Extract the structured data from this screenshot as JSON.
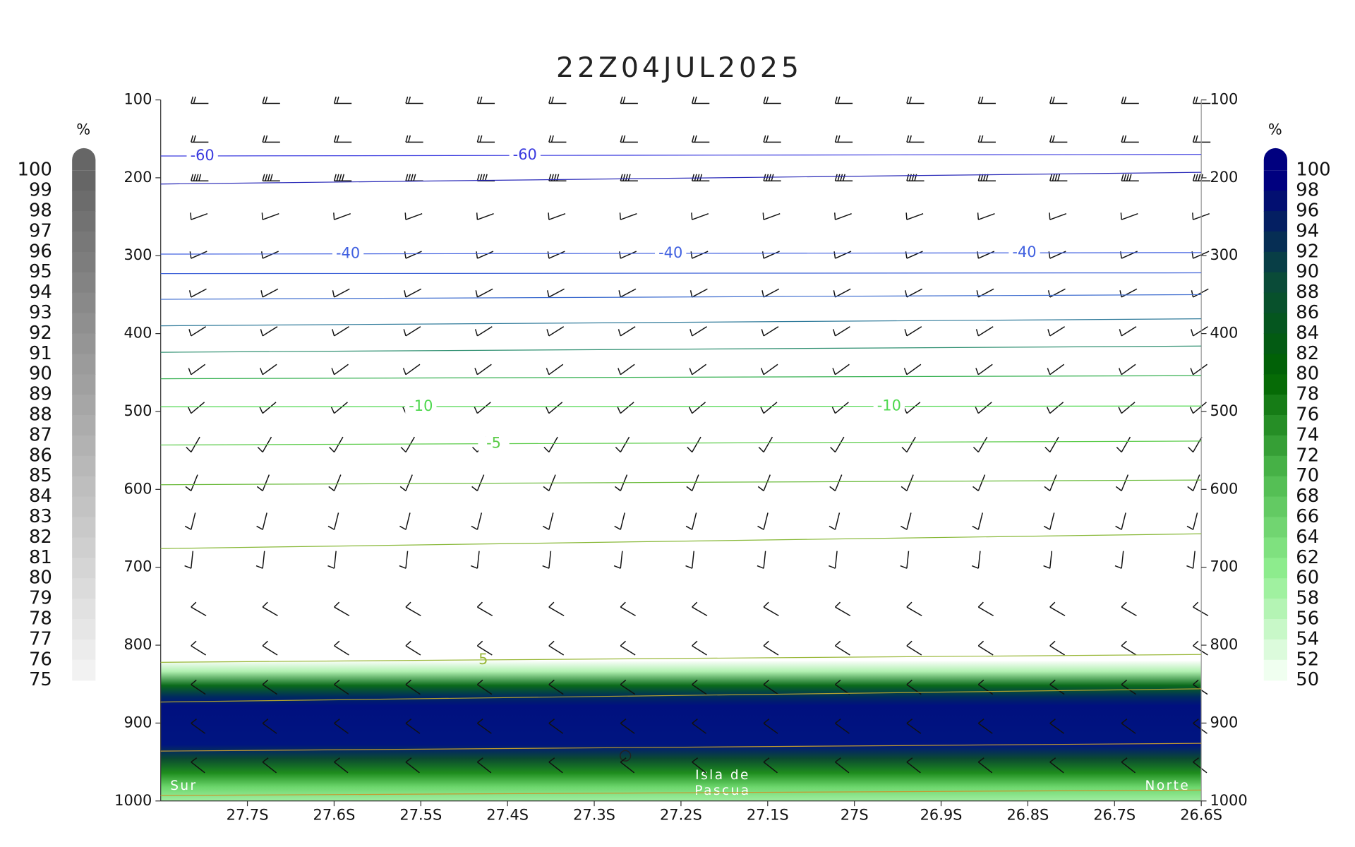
{
  "chart_data": {
    "type": "cross-section",
    "title": "22Z04JUL2025",
    "xlim": [
      -27.8,
      -26.6
    ],
    "xticks": [
      {
        "value": -27.7,
        "label": "27.7S"
      },
      {
        "value": -27.6,
        "label": "27.6S"
      },
      {
        "value": -27.5,
        "label": "27.5S"
      },
      {
        "value": -27.4,
        "label": "27.4S"
      },
      {
        "value": -27.3,
        "label": "27.3S"
      },
      {
        "value": -27.2,
        "label": "27.2S"
      },
      {
        "value": -27.1,
        "label": "27.1S"
      },
      {
        "value": -27.0,
        "label": "27S"
      },
      {
        "value": -26.9,
        "label": "26.9S"
      },
      {
        "value": -26.8,
        "label": "26.8S"
      },
      {
        "value": -26.7,
        "label": "26.7S"
      },
      {
        "value": -26.6,
        "label": "26.6S"
      }
    ],
    "ylim": [
      100,
      1000
    ],
    "yticks": [
      100,
      200,
      300,
      400,
      500,
      600,
      700,
      800,
      900,
      1000
    ],
    "contours": {
      "x": [
        -27.8,
        -26.6
      ],
      "series": [
        {
          "label": "-60",
          "color": "#3a3adf",
          "values": [
            172,
            170
          ]
        },
        {
          "color": "#2a2ab8",
          "values": [
            208,
            193
          ]
        },
        {
          "label": "-40",
          "color": "#4060e0",
          "values": [
            298,
            296
          ]
        },
        {
          "color": "#3f63d8",
          "values": [
            323,
            322
          ]
        },
        {
          "color": "#3d6ccf",
          "values": [
            356,
            350
          ]
        },
        {
          "color": "#2f7a9a",
          "values": [
            390,
            381
          ]
        },
        {
          "color": "#2e8f70",
          "values": [
            424,
            416
          ]
        },
        {
          "color": "#35b050",
          "values": [
            458,
            454
          ]
        },
        {
          "label": "-10",
          "color": "#4ed84e",
          "values": [
            494,
            493
          ]
        },
        {
          "label": "-5",
          "color": "#5ccc4a",
          "values": [
            543,
            538
          ]
        },
        {
          "color": "#6aba3a",
          "values": [
            594,
            588
          ]
        },
        {
          "color": "#88b838",
          "values": [
            676,
            657
          ]
        },
        {
          "label": "5",
          "color": "#9ab83a",
          "values": [
            822,
            812
          ]
        },
        {
          "color": "#b0a030",
          "values": [
            873,
            856
          ]
        },
        {
          "color": "#c09a30",
          "values": [
            936,
            926
          ]
        },
        {
          "color": "#c89830",
          "values": [
            993,
            986
          ]
        }
      ]
    },
    "annotations": [
      "Sur",
      "Isla de",
      "Pascua",
      "Norte"
    ],
    "colorbars": [
      {
        "label": "%",
        "ticks": [
          100,
          99,
          98,
          97,
          96,
          95,
          94,
          93,
          92,
          91,
          90,
          89,
          88,
          87,
          86,
          85,
          84,
          83,
          82,
          81,
          80,
          79,
          78,
          77,
          76,
          75
        ],
        "colors": [
          "#666666",
          "#f2f2f2"
        ]
      },
      {
        "label": "%",
        "ticks": [
          100,
          98,
          96,
          94,
          92,
          90,
          88,
          86,
          84,
          82,
          80,
          78,
          76,
          74,
          72,
          70,
          68,
          66,
          64,
          62,
          60,
          58,
          56,
          54,
          52,
          50
        ],
        "colors": [
          "#00007f",
          "#0a4a3a",
          "#006400",
          "#4cb84c",
          "#90ee90",
          "#f0fff0"
        ]
      }
    ]
  }
}
